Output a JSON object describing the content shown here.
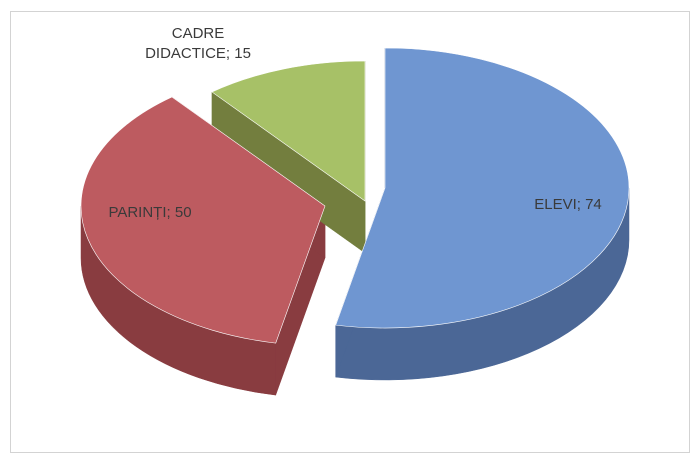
{
  "chart_data": {
    "type": "pie",
    "style": "3d-exploded",
    "slices": [
      {
        "label": "ELEVI",
        "value": 74,
        "color": "#6f96d1",
        "side_color": "#4b6796",
        "text": "ELEVI; 74"
      },
      {
        "label": "PARINȚI",
        "value": 50,
        "color": "#bd5b60",
        "side_color": "#893c40",
        "text": "PARINȚI; 50"
      },
      {
        "label": "CADRE DIDACTICE",
        "value": 15,
        "color": "#a7c167",
        "side_color": "#737e3e",
        "text_lines": [
          "CADRE",
          "DIDACTICE; 15"
        ]
      }
    ],
    "title": "",
    "legend": "none"
  }
}
